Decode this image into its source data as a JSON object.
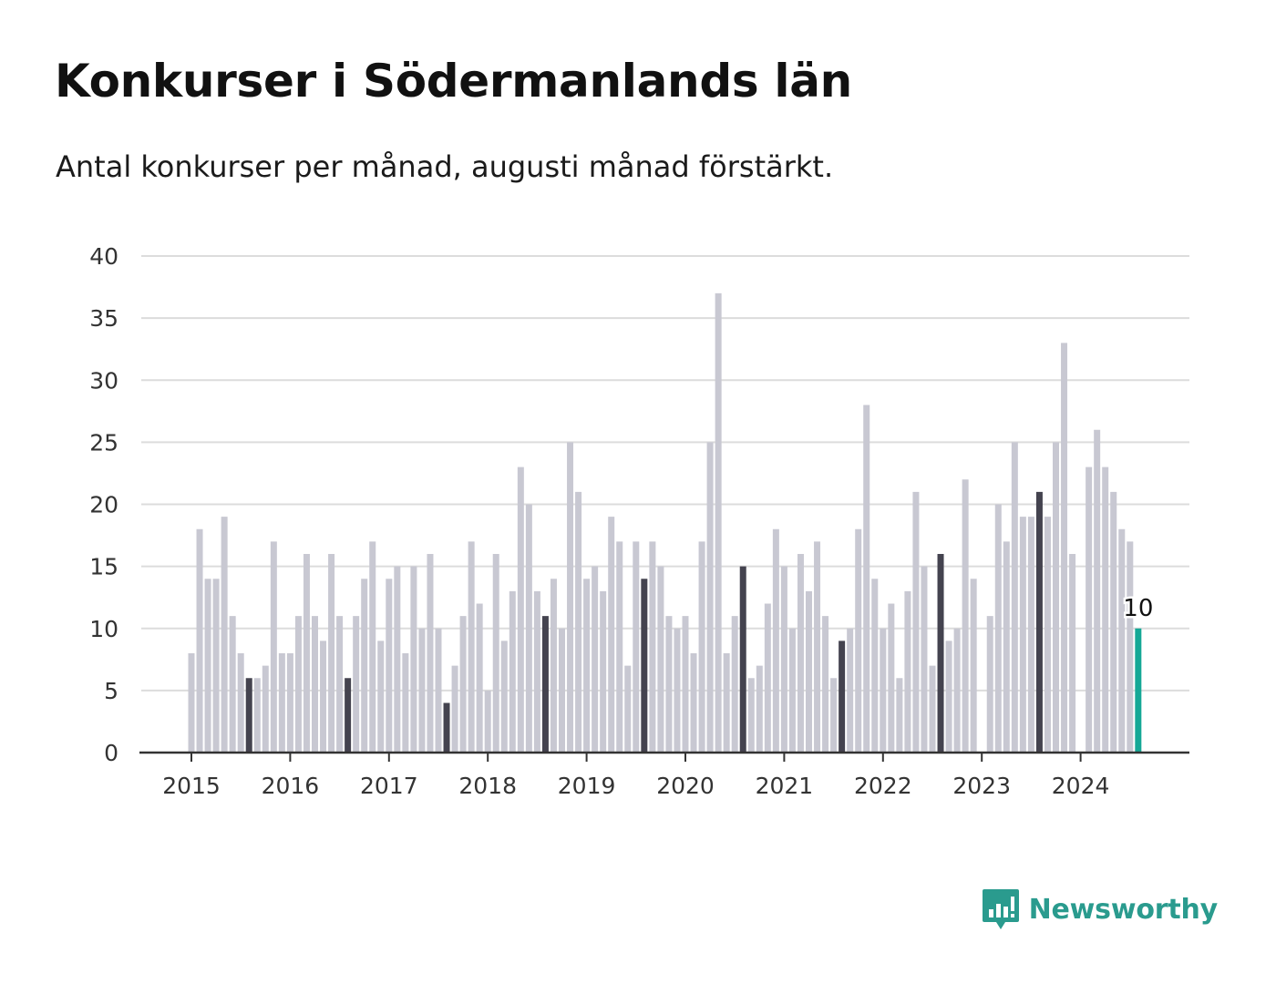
{
  "title": "Konkurser i Södermanlands län",
  "subtitle": "Antal konkurser per månad, augusti månad förstärkt.",
  "brand": {
    "name": "Newsworthy",
    "icon": "newsworthy-logo-icon"
  },
  "colors": {
    "bar": "#c8c8d2",
    "highlight": "#44434f",
    "current": "#15a896",
    "grid": "#dcdcdc",
    "axis": "#333333",
    "brand": "#2a9b8e"
  },
  "chart_data": {
    "type": "bar",
    "title": "Konkurser i Södermanlands län",
    "subtitle": "Antal konkurser per månad, augusti månad förstärkt.",
    "ylim": [
      0,
      40
    ],
    "y_ticks": [
      0,
      5,
      10,
      15,
      20,
      25,
      30,
      35,
      40
    ],
    "x_tick_labels": [
      "2015",
      "2016",
      "2017",
      "2018",
      "2019",
      "2020",
      "2021",
      "2022",
      "2023",
      "2024"
    ],
    "x_start": "2015-01",
    "x_end": "2024-08",
    "grid": true,
    "legend": "none",
    "highlighted_month": "augusti",
    "data_label": {
      "month": "2024-08",
      "value": 10,
      "text": "10"
    },
    "series": [
      {
        "year": 2015,
        "values": [
          8,
          18,
          14,
          14,
          19,
          11,
          8,
          6,
          6,
          7,
          17,
          8
        ]
      },
      {
        "year": 2016,
        "values": [
          8,
          11,
          16,
          11,
          9,
          16,
          11,
          6,
          11,
          14,
          17,
          9
        ]
      },
      {
        "year": 2017,
        "values": [
          14,
          15,
          8,
          15,
          10,
          16,
          10,
          4,
          7,
          11,
          17,
          12
        ]
      },
      {
        "year": 2018,
        "values": [
          5,
          16,
          9,
          13,
          23,
          20,
          13,
          11,
          14,
          10,
          25,
          21
        ]
      },
      {
        "year": 2019,
        "values": [
          14,
          15,
          13,
          19,
          17,
          7,
          17,
          14,
          17,
          15,
          11,
          10
        ]
      },
      {
        "year": 2020,
        "values": [
          11,
          8,
          17,
          25,
          37,
          8,
          11,
          15,
          6,
          7,
          12,
          18
        ]
      },
      {
        "year": 2021,
        "values": [
          15,
          10,
          16,
          13,
          17,
          11,
          6,
          9,
          10,
          18,
          28,
          14
        ]
      },
      {
        "year": 2022,
        "values": [
          10,
          12,
          6,
          13,
          21,
          15,
          7,
          16,
          9,
          10,
          22,
          14
        ]
      },
      {
        "year": 2023,
        "values": [
          0,
          11,
          20,
          17,
          25,
          19,
          19,
          21,
          19,
          25,
          33,
          16
        ]
      },
      {
        "year": 2024,
        "values": [
          0,
          23,
          26,
          23,
          21,
          18,
          17,
          10
        ]
      }
    ]
  }
}
